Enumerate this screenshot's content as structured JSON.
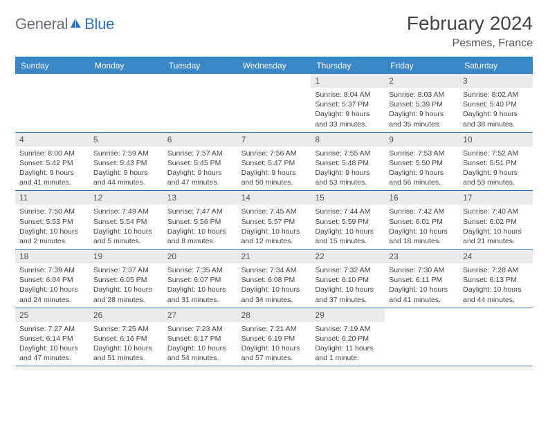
{
  "brand": {
    "part1": "General",
    "part2": "Blue"
  },
  "title": "February 2024",
  "location": "Pesmes, France",
  "colors": {
    "header_bg": "#3a87c8",
    "accent": "#2d74b9",
    "daynum_bg": "#ebebeb",
    "text": "#444444",
    "logo_grey": "#6a6f73"
  },
  "day_names": [
    "Sunday",
    "Monday",
    "Tuesday",
    "Wednesday",
    "Thursday",
    "Friday",
    "Saturday"
  ],
  "weeks": [
    [
      null,
      null,
      null,
      null,
      {
        "num": "1",
        "sr": "8:04 AM",
        "ss": "5:37 PM",
        "dl": "9 hours and 33 minutes."
      },
      {
        "num": "2",
        "sr": "8:03 AM",
        "ss": "5:39 PM",
        "dl": "9 hours and 35 minutes."
      },
      {
        "num": "3",
        "sr": "8:02 AM",
        "ss": "5:40 PM",
        "dl": "9 hours and 38 minutes."
      }
    ],
    [
      {
        "num": "4",
        "sr": "8:00 AM",
        "ss": "5:42 PM",
        "dl": "9 hours and 41 minutes."
      },
      {
        "num": "5",
        "sr": "7:59 AM",
        "ss": "5:43 PM",
        "dl": "9 hours and 44 minutes."
      },
      {
        "num": "6",
        "sr": "7:57 AM",
        "ss": "5:45 PM",
        "dl": "9 hours and 47 minutes."
      },
      {
        "num": "7",
        "sr": "7:56 AM",
        "ss": "5:47 PM",
        "dl": "9 hours and 50 minutes."
      },
      {
        "num": "8",
        "sr": "7:55 AM",
        "ss": "5:48 PM",
        "dl": "9 hours and 53 minutes."
      },
      {
        "num": "9",
        "sr": "7:53 AM",
        "ss": "5:50 PM",
        "dl": "9 hours and 56 minutes."
      },
      {
        "num": "10",
        "sr": "7:52 AM",
        "ss": "5:51 PM",
        "dl": "9 hours and 59 minutes."
      }
    ],
    [
      {
        "num": "11",
        "sr": "7:50 AM",
        "ss": "5:53 PM",
        "dl": "10 hours and 2 minutes."
      },
      {
        "num": "12",
        "sr": "7:49 AM",
        "ss": "5:54 PM",
        "dl": "10 hours and 5 minutes."
      },
      {
        "num": "13",
        "sr": "7:47 AM",
        "ss": "5:56 PM",
        "dl": "10 hours and 8 minutes."
      },
      {
        "num": "14",
        "sr": "7:45 AM",
        "ss": "5:57 PM",
        "dl": "10 hours and 12 minutes."
      },
      {
        "num": "15",
        "sr": "7:44 AM",
        "ss": "5:59 PM",
        "dl": "10 hours and 15 minutes."
      },
      {
        "num": "16",
        "sr": "7:42 AM",
        "ss": "6:01 PM",
        "dl": "10 hours and 18 minutes."
      },
      {
        "num": "17",
        "sr": "7:40 AM",
        "ss": "6:02 PM",
        "dl": "10 hours and 21 minutes."
      }
    ],
    [
      {
        "num": "18",
        "sr": "7:39 AM",
        "ss": "6:04 PM",
        "dl": "10 hours and 24 minutes."
      },
      {
        "num": "19",
        "sr": "7:37 AM",
        "ss": "6:05 PM",
        "dl": "10 hours and 28 minutes."
      },
      {
        "num": "20",
        "sr": "7:35 AM",
        "ss": "6:07 PM",
        "dl": "10 hours and 31 minutes."
      },
      {
        "num": "21",
        "sr": "7:34 AM",
        "ss": "6:08 PM",
        "dl": "10 hours and 34 minutes."
      },
      {
        "num": "22",
        "sr": "7:32 AM",
        "ss": "6:10 PM",
        "dl": "10 hours and 37 minutes."
      },
      {
        "num": "23",
        "sr": "7:30 AM",
        "ss": "6:11 PM",
        "dl": "10 hours and 41 minutes."
      },
      {
        "num": "24",
        "sr": "7:28 AM",
        "ss": "6:13 PM",
        "dl": "10 hours and 44 minutes."
      }
    ],
    [
      {
        "num": "25",
        "sr": "7:27 AM",
        "ss": "6:14 PM",
        "dl": "10 hours and 47 minutes."
      },
      {
        "num": "26",
        "sr": "7:25 AM",
        "ss": "6:16 PM",
        "dl": "10 hours and 51 minutes."
      },
      {
        "num": "27",
        "sr": "7:23 AM",
        "ss": "6:17 PM",
        "dl": "10 hours and 54 minutes."
      },
      {
        "num": "28",
        "sr": "7:21 AM",
        "ss": "6:19 PM",
        "dl": "10 hours and 57 minutes."
      },
      {
        "num": "29",
        "sr": "7:19 AM",
        "ss": "6:20 PM",
        "dl": "11 hours and 1 minute."
      },
      null,
      null
    ]
  ],
  "labels": {
    "sunrise": "Sunrise: ",
    "sunset": "Sunset: ",
    "daylight": "Daylight: "
  }
}
